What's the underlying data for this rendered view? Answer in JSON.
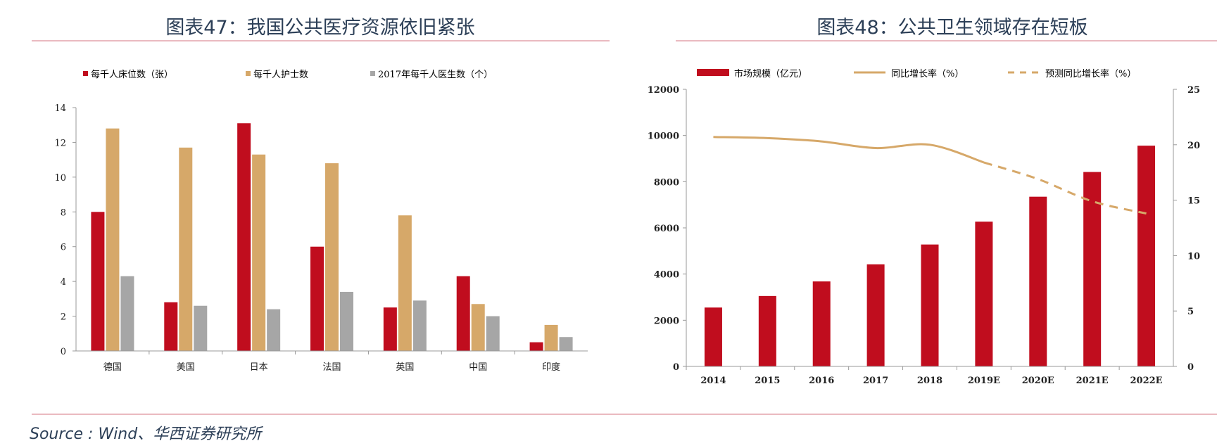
{
  "page": {
    "source": "Source : Wind、华西证券研究所",
    "colors": {
      "red": "#c00d1e",
      "tan": "#d6a869",
      "grey": "#a6a6a6",
      "title": "#2c3f57",
      "rule": "#e3a3ab"
    }
  },
  "chart_data": [
    {
      "type": "bar",
      "title": "图表47：我国公共医疗资源依旧紧张",
      "categories": [
        "德国",
        "美国",
        "日本",
        "法国",
        "英国",
        "中国",
        "印度"
      ],
      "ylim": [
        0,
        14
      ],
      "yticks": [
        0,
        2,
        4,
        6,
        8,
        10,
        12,
        14
      ],
      "legend_position": "top",
      "series": [
        {
          "name": "每千人床位数（张）",
          "color": "#c00d1e",
          "values": [
            8.0,
            2.8,
            13.1,
            6.0,
            2.5,
            4.3,
            0.5
          ]
        },
        {
          "name": "每千人护士数",
          "color": "#d6a869",
          "values": [
            12.8,
            11.7,
            11.3,
            10.8,
            7.8,
            2.7,
            1.5
          ]
        },
        {
          "name": "2017年每千人医生数（个）",
          "color": "#a6a6a6",
          "values": [
            4.3,
            2.6,
            2.4,
            3.4,
            2.9,
            2.0,
            0.8
          ]
        }
      ]
    },
    {
      "type": "bar+line",
      "title": "图表48：公共卫生领域存在短板",
      "categories": [
        "2014",
        "2015",
        "2016",
        "2017",
        "2018",
        "2019E",
        "2020E",
        "2021E",
        "2022E"
      ],
      "ylim_left": [
        0,
        12000
      ],
      "yticks_left": [
        0,
        2000,
        4000,
        6000,
        8000,
        10000,
        12000
      ],
      "ylim_right": [
        0,
        25
      ],
      "yticks_right": [
        0,
        5,
        10,
        15,
        20,
        25
      ],
      "legend_position": "top",
      "bars": {
        "name": "市场规模（亿元）",
        "color": "#c00d1e",
        "values": [
          2550,
          3050,
          3680,
          4420,
          5280,
          6270,
          7350,
          8420,
          9560
        ]
      },
      "lines": [
        {
          "name": "同比增长率（%）",
          "color": "#d6a869",
          "style": "solid",
          "x": [
            "2014",
            "2015",
            "2016",
            "2017",
            "2018",
            "2019E"
          ],
          "values": [
            20.7,
            20.6,
            20.3,
            19.7,
            20.0,
            18.4
          ]
        },
        {
          "name": "预测同比增长率（%）",
          "color": "#d6a869",
          "style": "dashed",
          "x": [
            "2019E",
            "2020E",
            "2021E",
            "2022E"
          ],
          "values": [
            18.4,
            16.9,
            14.9,
            13.8
          ]
        }
      ]
    }
  ]
}
